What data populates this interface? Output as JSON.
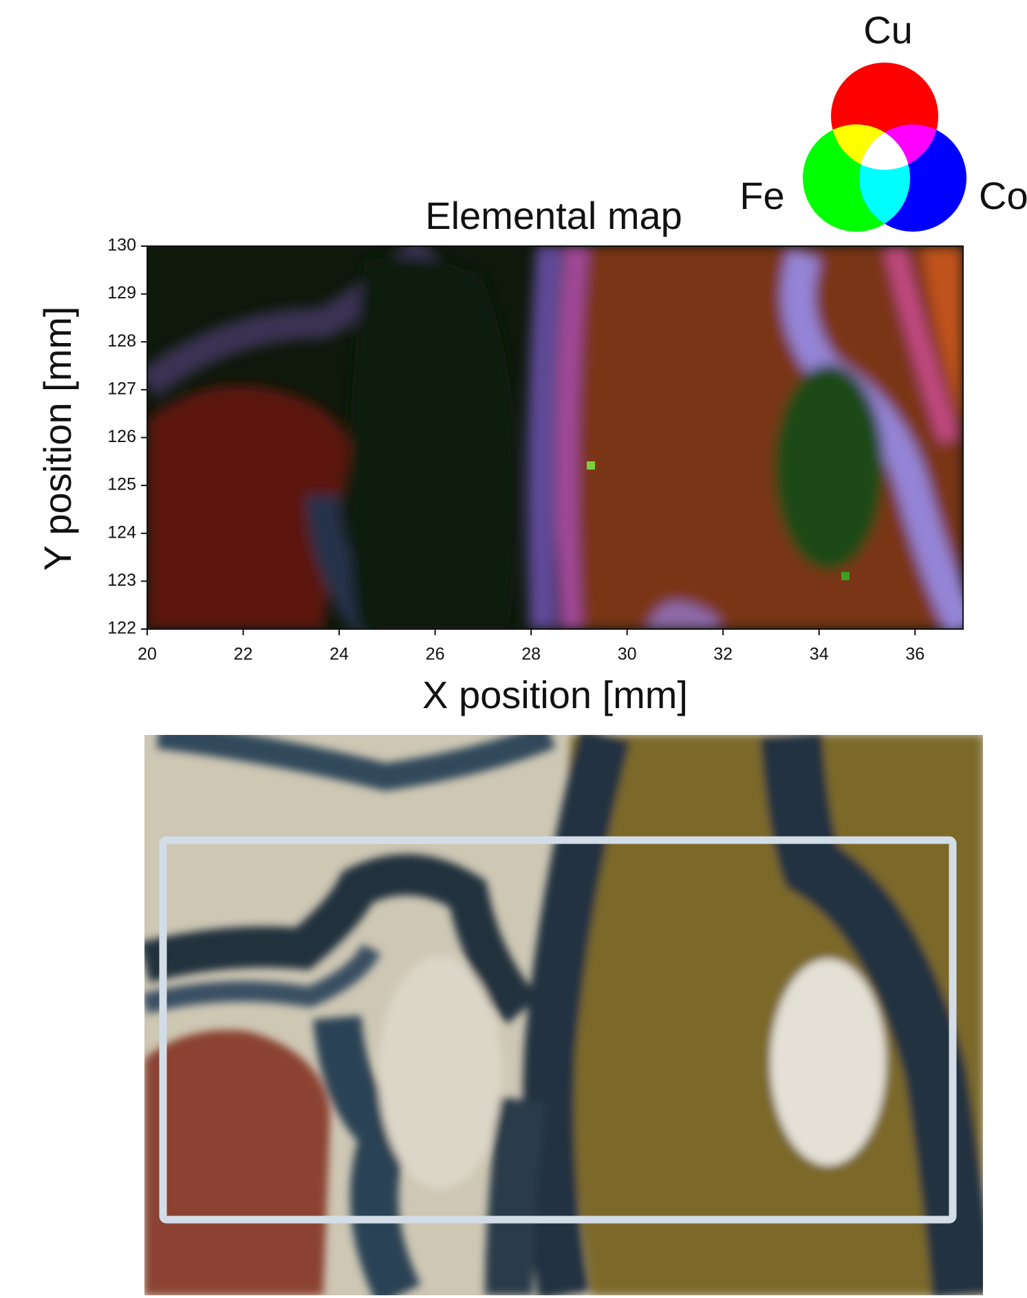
{
  "chart_data": {
    "type": "image-map",
    "title": "Elemental map",
    "x_label": "X position [mm]",
    "y_label": "Y position [mm]",
    "xlim": [
      20,
      37
    ],
    "ylim": [
      122,
      130
    ],
    "xticks": [
      20,
      22,
      24,
      26,
      28,
      30,
      32,
      34,
      36
    ],
    "yticks": [
      122,
      123,
      124,
      125,
      126,
      127,
      128,
      129,
      130
    ],
    "legend": [
      {
        "name": "Cu",
        "color": "#ff0000"
      },
      {
        "name": "Fe",
        "color": "#00ff00"
      },
      {
        "name": "Co",
        "color": "#0000ff"
      }
    ]
  }
}
